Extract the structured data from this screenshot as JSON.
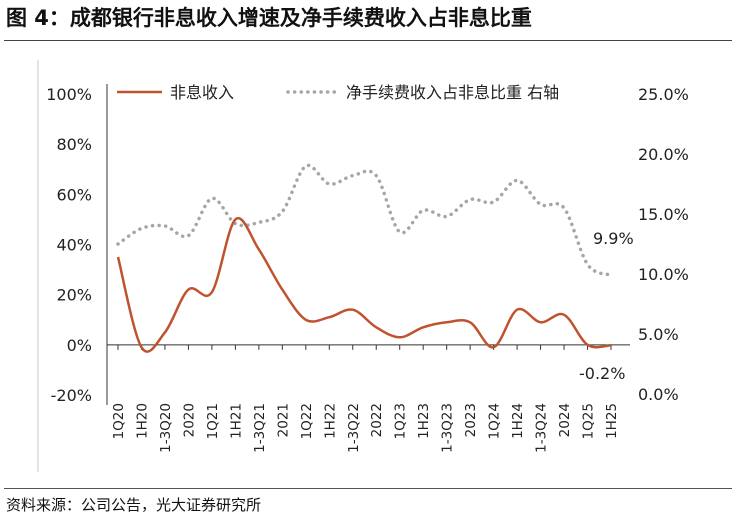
{
  "title": "图 4：成都银行非息收入增速及净手续费收入占非息比重",
  "source": "资料来源：公司公告，光大证券研究所",
  "colors": {
    "series_left": "#C0532F",
    "series_right": "#A6A6A6",
    "axis": "#333333"
  },
  "chart_data": {
    "type": "line",
    "x": [
      "1Q20",
      "1H20",
      "1-3Q20",
      "2020",
      "1Q21",
      "1H21",
      "1-3Q21",
      "2021",
      "1Q22",
      "1H22",
      "1-3Q22",
      "2022",
      "1Q23",
      "1H23",
      "1-3Q23",
      "2023",
      "1Q24",
      "1H24",
      "1-3Q24",
      "2024",
      "1Q25",
      "1H25"
    ],
    "y_left": {
      "ticks": [
        "-20%",
        "0%",
        "20%",
        "40%",
        "60%",
        "80%",
        "100%"
      ],
      "ylim": [
        -20,
        100
      ]
    },
    "y_right": {
      "ticks": [
        "0.0%",
        "5.0%",
        "10.0%",
        "15.0%",
        "20.0%",
        "25.0%"
      ],
      "ylim": [
        0,
        25
      ]
    },
    "series": [
      {
        "name": "非息收入",
        "axis": "left",
        "style": "solid",
        "values": [
          35,
          -1,
          5,
          22,
          21,
          50,
          38,
          22,
          10,
          11,
          14,
          7,
          3,
          7,
          9,
          9,
          -1,
          14,
          9,
          12,
          0,
          -0.2
        ]
      },
      {
        "name": "净手续费收入占非息比重 右轴",
        "axis": "right",
        "style": "dotted",
        "values": [
          12.5,
          13.8,
          14.0,
          13.2,
          16.3,
          14.2,
          14.3,
          15.2,
          19.0,
          17.5,
          18.2,
          18.2,
          13.5,
          15.3,
          14.8,
          16.2,
          16.0,
          17.8,
          15.8,
          15.5,
          10.8,
          9.9
        ]
      }
    ],
    "annotations": [
      {
        "text": "9.9%",
        "series": "净手续费收入占非息比重 右轴",
        "x": "1H25"
      },
      {
        "text": "-0.2%",
        "series": "非息收入",
        "x": "1H25"
      }
    ],
    "legend": "top",
    "grid": false
  }
}
